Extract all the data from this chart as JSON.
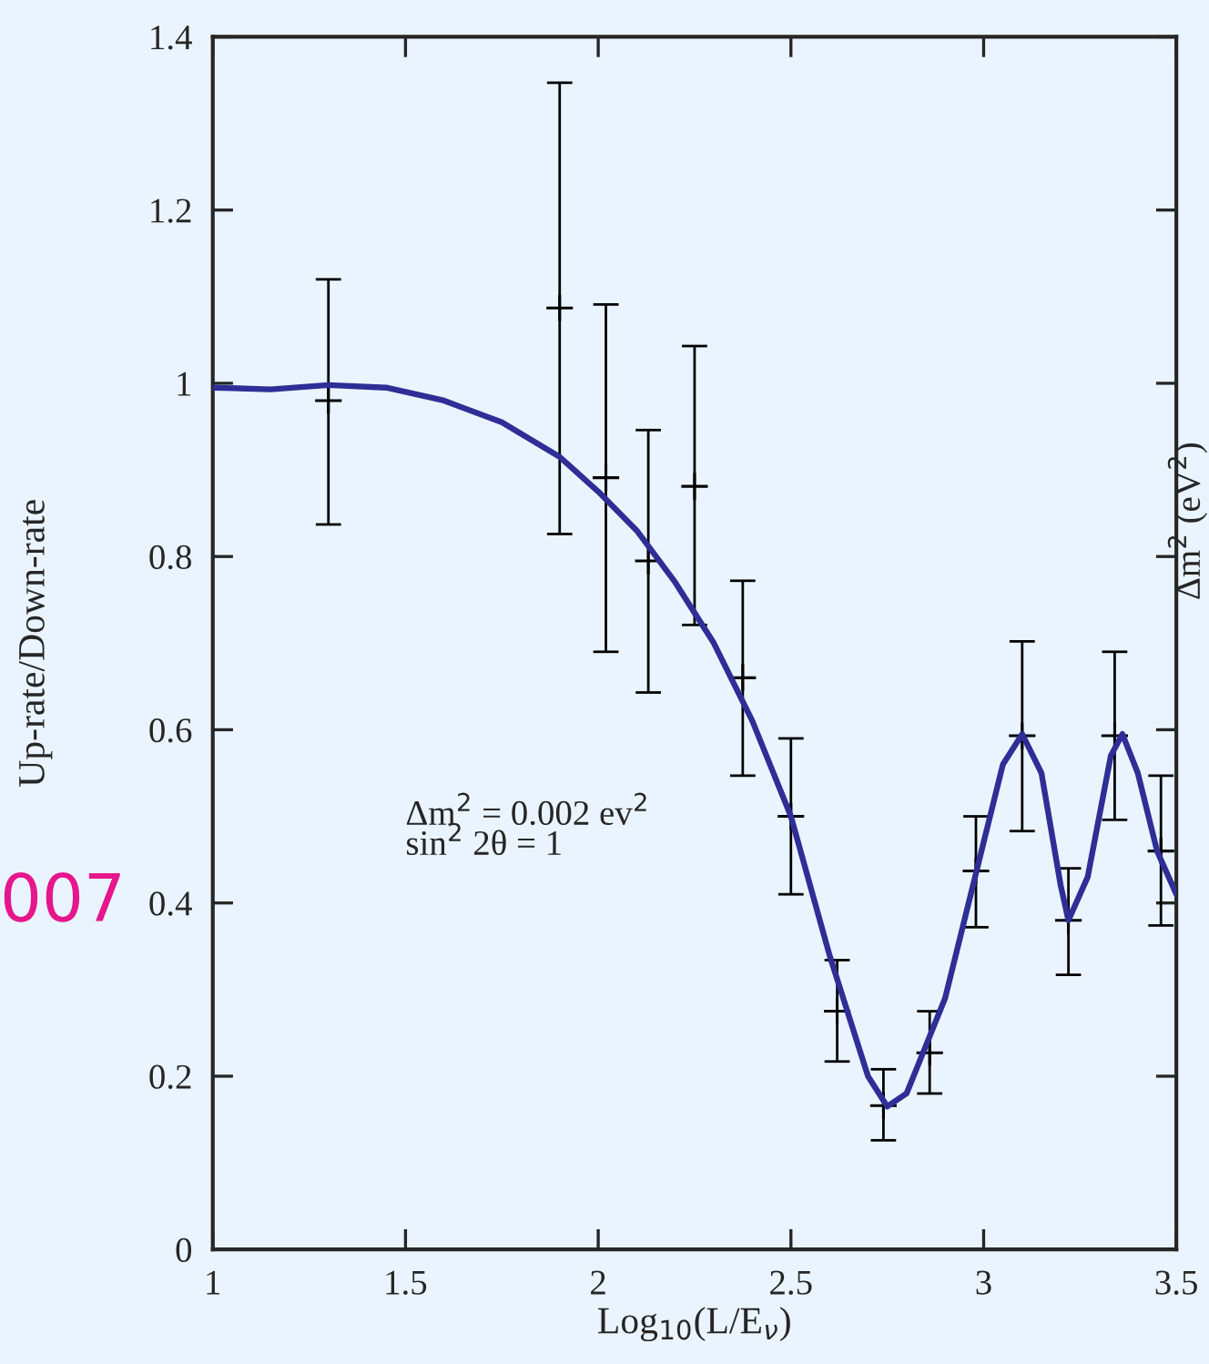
{
  "chart_data": {
    "type": "scatter",
    "xlabel": "Log$_{10}$(L/E$_{ν}$)",
    "ylabel": "Up-rate/Down-rate",
    "xlim": [
      1,
      3.5
    ],
    "xticks": [
      1,
      1.5,
      2,
      2.5,
      3,
      3.5
    ],
    "ylim": [
      0,
      1.4
    ],
    "yticks": [
      0,
      0.2,
      0.4,
      0.6,
      0.8,
      1,
      1.2,
      1.4
    ],
    "grid": false,
    "legend": false,
    "series": [
      {
        "marker": "cross",
        "color": "#000000",
        "x": [
          1.3,
          1.9,
          2.02,
          2.13,
          2.25,
          2.375,
          2.5,
          2.62,
          2.74,
          2.86,
          2.98,
          3.1,
          3.22,
          3.34,
          3.46
        ],
        "values": [
          0.98,
          1.087,
          0.891,
          0.795,
          0.881,
          0.66,
          0.5,
          0.275,
          0.166,
          0.227,
          0.437,
          0.593,
          0.38,
          0.593,
          0.46
        ],
        "errors": [
          [
            0.837,
            1.12
          ],
          [
            0.826,
            1.347
          ],
          [
            0.69,
            1.091
          ],
          [
            0.643,
            0.946
          ],
          [
            0.721,
            1.043
          ],
          [
            0.547,
            0.772
          ],
          [
            0.41,
            0.59
          ],
          [
            0.217,
            0.334
          ],
          [
            0.126,
            0.208
          ],
          [
            0.18,
            0.275
          ],
          [
            0.372,
            0.5
          ],
          [
            0.483,
            0.702
          ],
          [
            0.317,
            0.44
          ],
          [
            0.496,
            0.69
          ],
          [
            0.374,
            0.547
          ]
        ]
      },
      {
        "type": "line",
        "color": "#2e2e96",
        "x": [
          1.0,
          1.15,
          1.3,
          1.45,
          1.6,
          1.75,
          1.9,
          2.0,
          2.1,
          2.2,
          2.3,
          2.4,
          2.5,
          2.6,
          2.7,
          2.75,
          2.8,
          2.9,
          3.0,
          3.05,
          3.1,
          3.15,
          3.2,
          3.22,
          3.27,
          3.33,
          3.36,
          3.4,
          3.45,
          3.5
        ],
        "values": [
          0.995,
          0.993,
          0.998,
          0.995,
          0.98,
          0.955,
          0.915,
          0.875,
          0.83,
          0.77,
          0.7,
          0.61,
          0.5,
          0.34,
          0.2,
          0.165,
          0.18,
          0.29,
          0.47,
          0.56,
          0.595,
          0.55,
          0.42,
          0.38,
          0.43,
          0.57,
          0.595,
          0.55,
          0.46,
          0.41
        ]
      }
    ],
    "annotations": [
      "Δm$^{2}$ = 0.002 ev$^{2}$\nsin$^{2}$ 2θ = 1",
      "007",
      "Δm$^{2}$ (eV$^{2}$)"
    ]
  }
}
